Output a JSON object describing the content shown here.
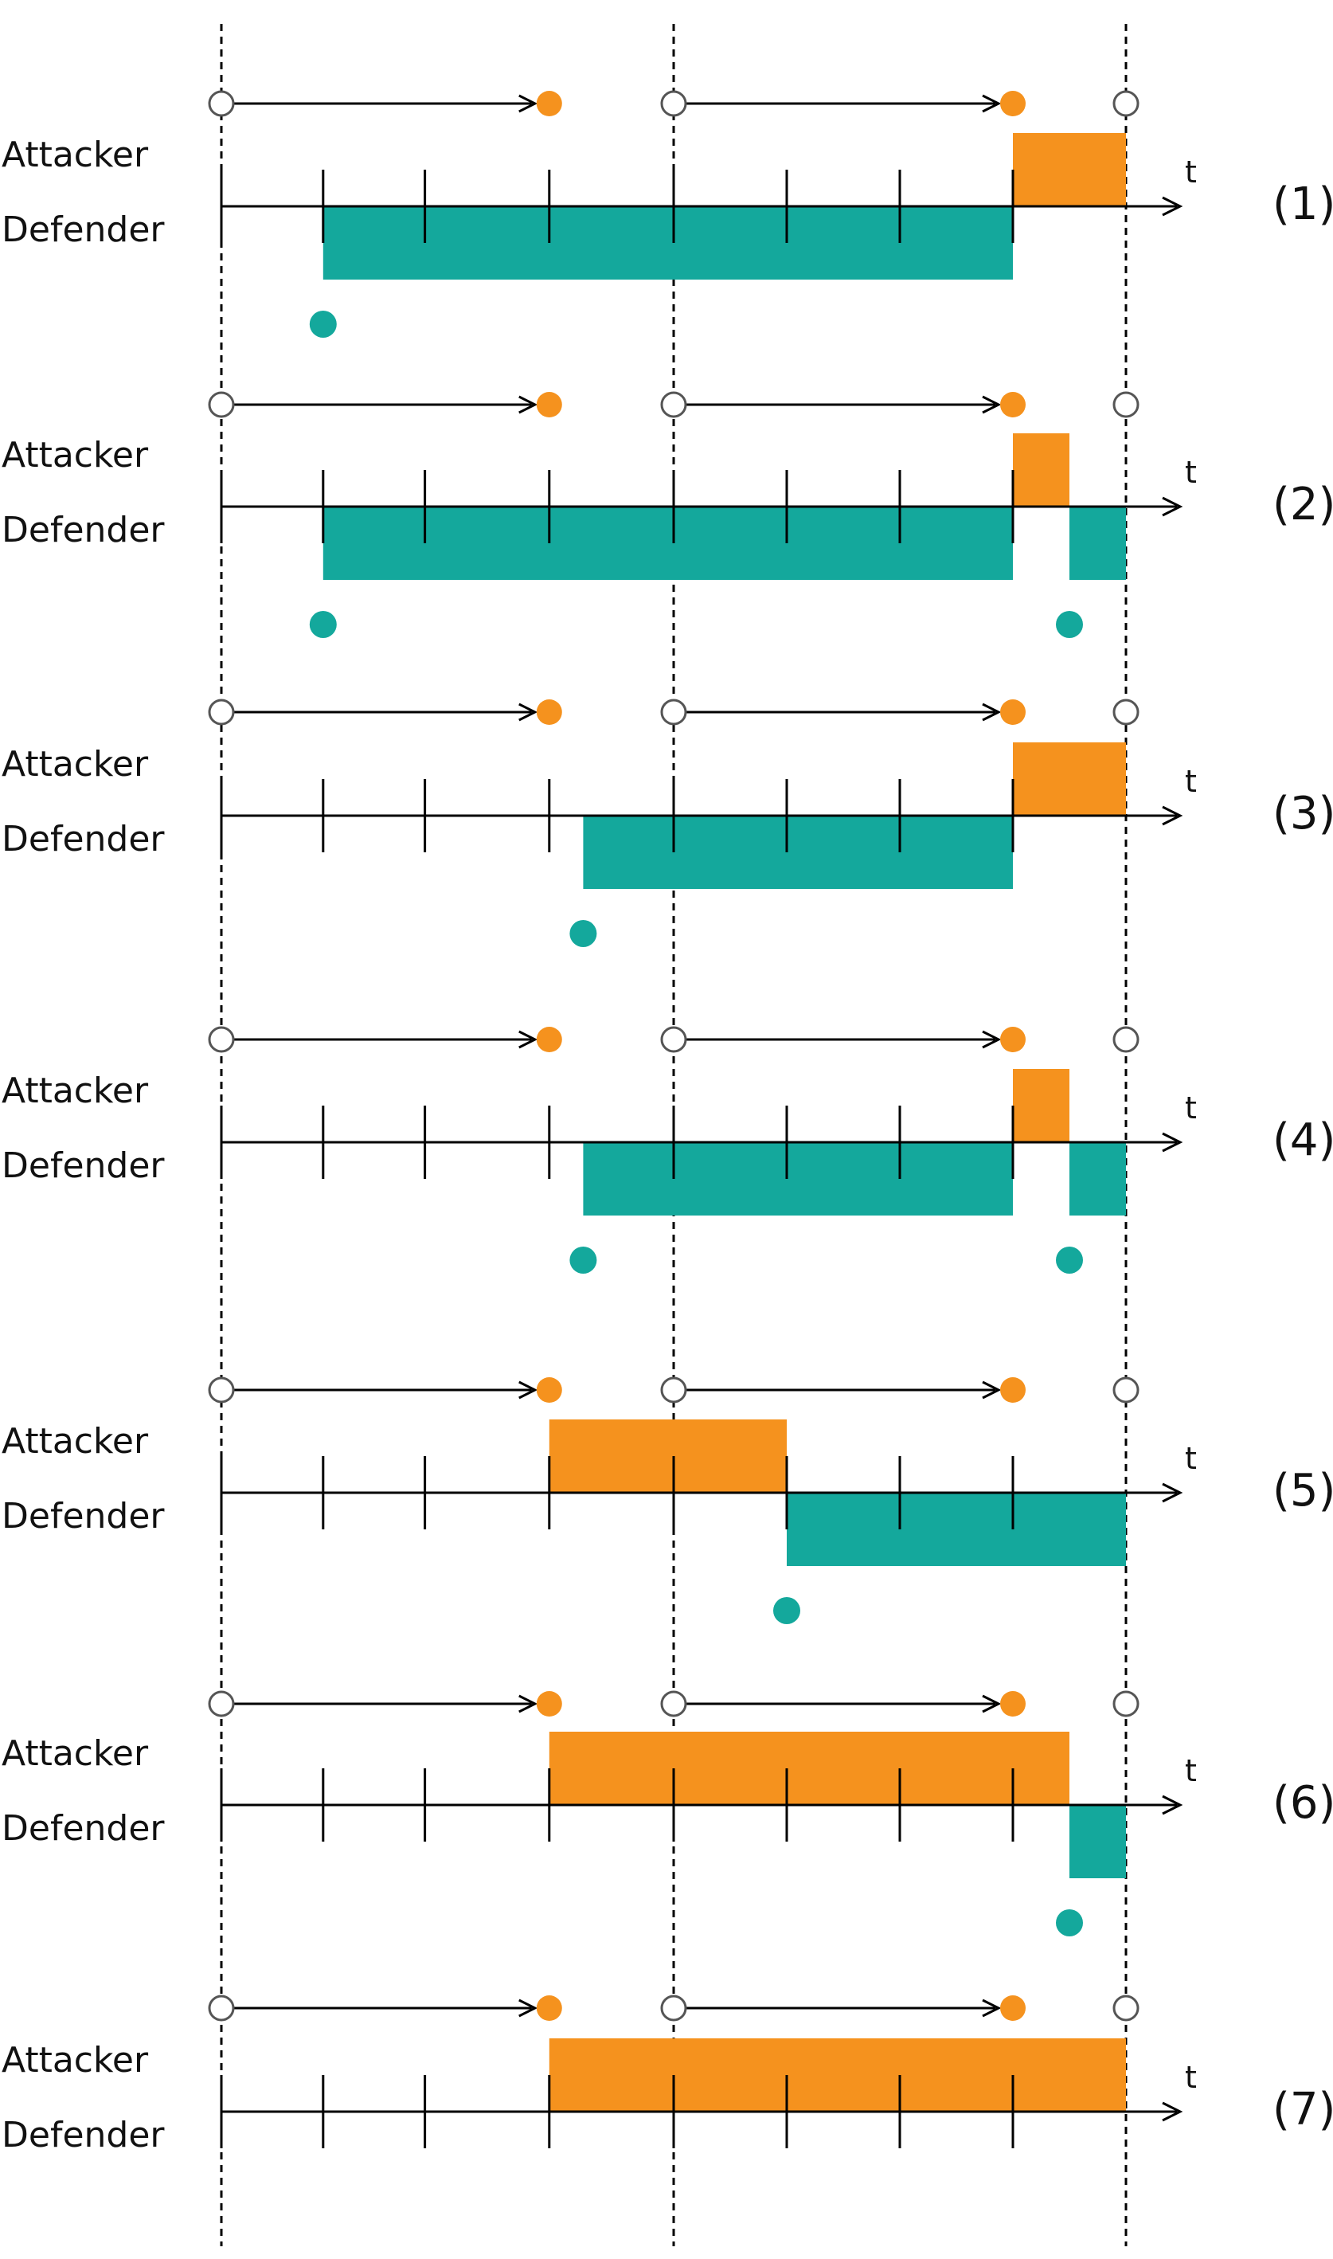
{
  "labels": {
    "attacker": "Attacker",
    "defender": "Defender",
    "axis": "t"
  },
  "colors": {
    "attacker": "#F5921E",
    "defender": "#14A89C",
    "line": "#000000",
    "open_marker_stroke": "#555555"
  },
  "time": {
    "ticks": [
      0.9,
      1.8,
      2.9,
      4.0,
      5.0,
      6.0,
      7.0
    ],
    "dashed_lines": [
      0,
      4,
      8
    ],
    "checkpoints": [
      0,
      4,
      8
    ],
    "attacker_markers": [
      2.9,
      7.0
    ]
  },
  "rows": [
    {
      "tag": "(1)",
      "attacker_segments": [
        [
          7.0,
          8.0
        ]
      ],
      "defender_segments": [
        [
          0.9,
          7.0
        ]
      ],
      "defender_markers": [
        0.9
      ]
    },
    {
      "tag": "(2)",
      "attacker_segments": [
        [
          7.0,
          7.5
        ]
      ],
      "defender_segments": [
        [
          0.9,
          7.0
        ],
        [
          7.5,
          8.0
        ]
      ],
      "defender_markers": [
        0.9,
        7.5
      ]
    },
    {
      "tag": "(3)",
      "attacker_segments": [
        [
          7.0,
          8.0
        ]
      ],
      "defender_segments": [
        [
          3.2,
          7.0
        ]
      ],
      "defender_markers": [
        3.2
      ]
    },
    {
      "tag": "(4)",
      "attacker_segments": [
        [
          7.0,
          7.5
        ]
      ],
      "defender_segments": [
        [
          3.2,
          7.0
        ],
        [
          7.5,
          8.0
        ]
      ],
      "defender_markers": [
        3.2,
        7.5
      ]
    },
    {
      "tag": "(5)",
      "attacker_segments": [
        [
          2.9,
          5.0
        ]
      ],
      "defender_segments": [
        [
          5.0,
          8.0
        ]
      ],
      "defender_markers": [
        5.0
      ]
    },
    {
      "tag": "(6)",
      "attacker_segments": [
        [
          2.9,
          7.5
        ]
      ],
      "defender_segments": [
        [
          7.5,
          8.0
        ]
      ],
      "defender_markers": [
        7.5
      ]
    },
    {
      "tag": "(7)",
      "attacker_segments": [
        [
          2.9,
          8.0
        ]
      ],
      "defender_segments": [],
      "defender_markers": []
    }
  ]
}
